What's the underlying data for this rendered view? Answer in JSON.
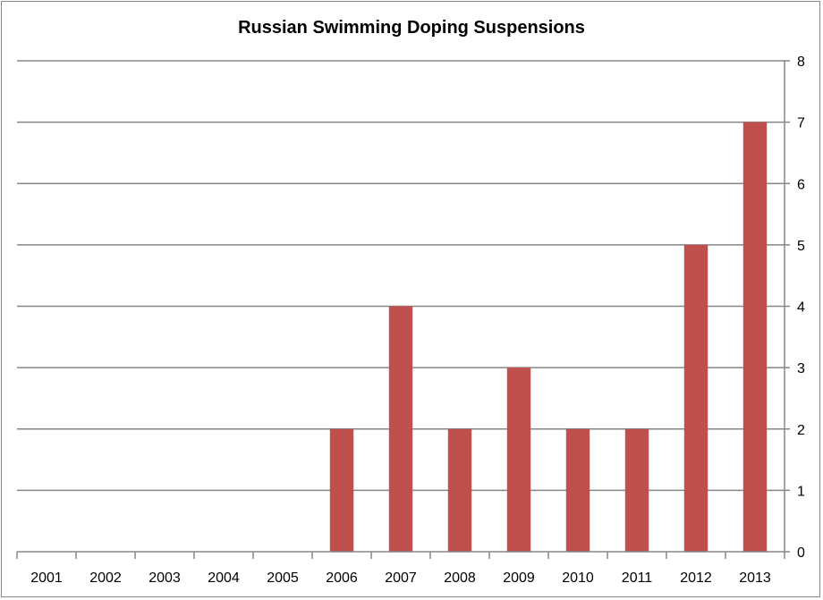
{
  "chart_data": {
    "type": "bar",
    "title": "Russian Swimming Doping Suspensions",
    "categories": [
      "2001",
      "2002",
      "2003",
      "2004",
      "2005",
      "2006",
      "2007",
      "2008",
      "2009",
      "2010",
      "2011",
      "2012",
      "2013"
    ],
    "values": [
      0,
      0,
      0,
      0,
      0,
      2,
      4,
      2,
      3,
      2,
      2,
      5,
      7
    ],
    "y_ticks": [
      "0",
      "1",
      "2",
      "3",
      "4",
      "5",
      "6",
      "7",
      "8"
    ],
    "ylim": [
      0,
      8
    ],
    "y_axis_side": "right",
    "grid": true,
    "legend": "none",
    "bar_color": "#C0504D",
    "grid_color": "#868686"
  }
}
